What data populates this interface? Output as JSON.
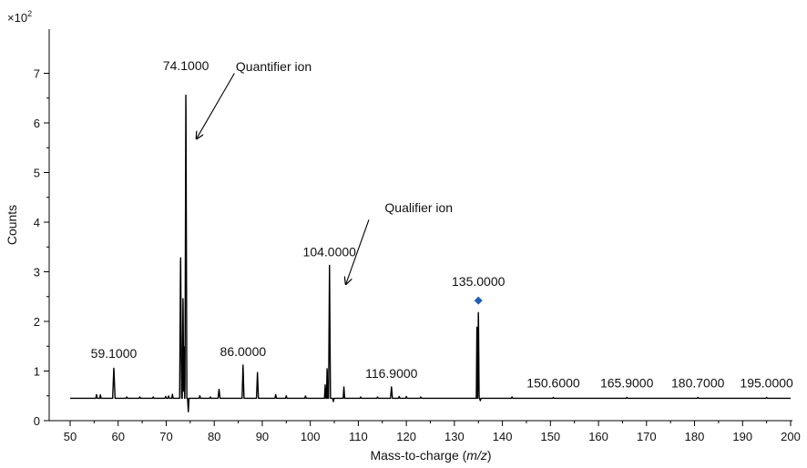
{
  "chart_data": {
    "type": "line",
    "title": "",
    "xlabel_prefix": "Mass-to-charge (",
    "xlabel_var": "m/z",
    "xlabel_suffix": ")",
    "ylabel": "Counts",
    "y_multiplier_base": "×10",
    "y_multiplier_exp": "2",
    "xlim": [
      50,
      200
    ],
    "ylim": [
      0,
      7.6
    ],
    "xticks": [
      50,
      60,
      70,
      80,
      90,
      100,
      110,
      120,
      130,
      140,
      150,
      160,
      170,
      180,
      190,
      200
    ],
    "yticks": [
      0,
      1,
      2,
      3,
      4,
      5,
      6,
      7
    ],
    "baseline": 0.45,
    "grid": false,
    "series": [
      {
        "color": "#000000",
        "peaks": [
          {
            "x": 55.5,
            "y": 0.53,
            "w": 0.15
          },
          {
            "x": 56.3,
            "y": 0.52,
            "w": 0.15
          },
          {
            "x": 59.1,
            "y": 1.08,
            "w": 0.25
          },
          {
            "x": 61.8,
            "y": 0.48,
            "w": 0.15
          },
          {
            "x": 64.5,
            "y": 0.48,
            "w": 0.15
          },
          {
            "x": 67.3,
            "y": 0.48,
            "w": 0.15
          },
          {
            "x": 69.9,
            "y": 0.49,
            "w": 0.15
          },
          {
            "x": 70.5,
            "y": 0.5,
            "w": 0.15
          },
          {
            "x": 71.3,
            "y": 0.53,
            "w": 0.15
          },
          {
            "x": 73.0,
            "y": 3.43,
            "w": 0.2
          },
          {
            "x": 73.5,
            "y": 2.6,
            "w": 0.15
          },
          {
            "x": 74.1,
            "y": 6.88,
            "w": 0.2
          },
          {
            "x": 77.0,
            "y": 0.5,
            "w": 0.15
          },
          {
            "x": 79.2,
            "y": 0.48,
            "w": 0.15
          },
          {
            "x": 81.0,
            "y": 0.64,
            "w": 0.2
          },
          {
            "x": 86.0,
            "y": 1.12,
            "w": 0.2
          },
          {
            "x": 89.0,
            "y": 0.97,
            "w": 0.2
          },
          {
            "x": 92.8,
            "y": 0.53,
            "w": 0.15
          },
          {
            "x": 95.0,
            "y": 0.5,
            "w": 0.15
          },
          {
            "x": 99.0,
            "y": 0.5,
            "w": 0.15
          },
          {
            "x": 103.1,
            "y": 0.72,
            "w": 0.15
          },
          {
            "x": 103.5,
            "y": 1.1,
            "w": 0.12
          },
          {
            "x": 104.0,
            "y": 3.13,
            "w": 0.2
          },
          {
            "x": 107.0,
            "y": 0.68,
            "w": 0.15
          },
          {
            "x": 110.5,
            "y": 0.48,
            "w": 0.15
          },
          {
            "x": 114.0,
            "y": 0.48,
            "w": 0.15
          },
          {
            "x": 116.9,
            "y": 0.68,
            "w": 0.2
          },
          {
            "x": 118.5,
            "y": 0.49,
            "w": 0.15
          },
          {
            "x": 120.0,
            "y": 0.49,
            "w": 0.15
          },
          {
            "x": 123.0,
            "y": 0.48,
            "w": 0.15
          },
          {
            "x": 134.7,
            "y": 2.0,
            "w": 0.13
          },
          {
            "x": 135.0,
            "y": 2.3,
            "w": 0.15
          },
          {
            "x": 142.0,
            "y": 0.48,
            "w": 0.15
          },
          {
            "x": 150.6,
            "y": 0.47,
            "w": 0.15
          },
          {
            "x": 165.9,
            "y": 0.47,
            "w": 0.15
          },
          {
            "x": 180.7,
            "y": 0.47,
            "w": 0.15
          },
          {
            "x": 195.0,
            "y": 0.47,
            "w": 0.15
          }
        ],
        "dips": [
          {
            "x": 73.75,
            "y": 1.6,
            "w": 0.1
          },
          {
            "x": 74.6,
            "y": 0.18,
            "w": 0.15
          },
          {
            "x": 104.8,
            "y": 0.38,
            "w": 0.15
          },
          {
            "x": 135.4,
            "y": 0.4,
            "w": 0.15
          }
        ]
      }
    ],
    "peak_labels": [
      {
        "text": "59.1000",
        "x": 59.1,
        "y": 1.08
      },
      {
        "text": "74.1000",
        "x": 74.1,
        "y": 6.88
      },
      {
        "text": "86.0000",
        "x": 86.0,
        "y": 1.12
      },
      {
        "text": "104.0000",
        "x": 104.0,
        "y": 3.13
      },
      {
        "text": "116.9000",
        "x": 116.9,
        "y": 0.68
      },
      {
        "text": "135.0000",
        "x": 135.0,
        "y": 2.42
      },
      {
        "text": "150.6000",
        "x": 150.6,
        "y": 0.47
      },
      {
        "text": "165.9000",
        "x": 165.9,
        "y": 0.47
      },
      {
        "text": "180.7000",
        "x": 180.7,
        "y": 0.47
      },
      {
        "text": "195.0000",
        "x": 195.0,
        "y": 0.47
      }
    ],
    "marker": {
      "x": 135.0,
      "y": 2.42,
      "color": "#1f5fb4"
    },
    "annotations": [
      {
        "text": "Quantifier ion",
        "text_x": 84.5,
        "text_y": 7.05,
        "arrow_from": [
          84.2,
          7.0
        ],
        "arrow_to": [
          76.3,
          5.68
        ]
      },
      {
        "text": "Qualifier ion",
        "text_x": 115.5,
        "text_y": 4.2,
        "arrow_from": [
          112.2,
          4.05
        ],
        "arrow_to": [
          107.4,
          2.75
        ]
      }
    ]
  }
}
